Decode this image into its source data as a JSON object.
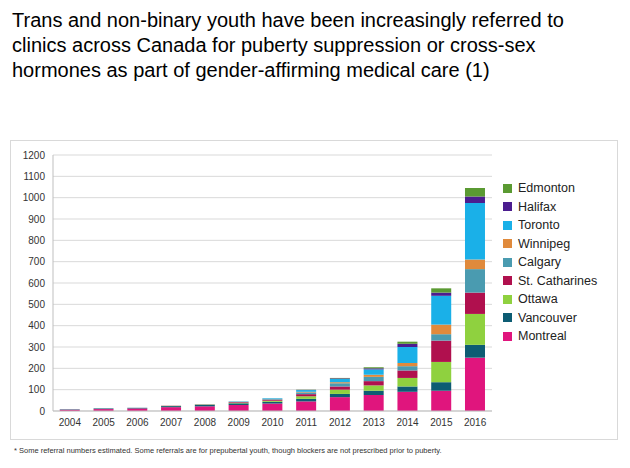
{
  "chart_data": {
    "type": "bar",
    "title": "Trans and non-binary youth have been increasingly referred to clinics across Canada for puberty suppression or cross-sex hormones as part of gender-affirming medical care (1)",
    "note": "* Some referral numbers estimated. Some referrals are for prepubertal youth, though blockers are not prescribed prior to puberty.",
    "categories": [
      "2004",
      "2005",
      "2006",
      "2007",
      "2008",
      "2009",
      "2010",
      "2011",
      "2012",
      "2013",
      "2014",
      "2015",
      "2016"
    ],
    "stacked": true,
    "grid": true,
    "legend": "right",
    "ylim": [
      0,
      1200
    ],
    "yticks": [
      0,
      100,
      200,
      300,
      400,
      500,
      600,
      700,
      800,
      900,
      1000,
      1100,
      1200
    ],
    "series": [
      {
        "name": "Montreal",
        "color": "#e0157d",
        "values": [
          6,
          9,
          12,
          18,
          22,
          28,
          35,
          45,
          65,
          75,
          90,
          95,
          250
        ]
      },
      {
        "name": "Vancouver",
        "color": "#0d5c73",
        "values": [
          2,
          3,
          3,
          5,
          6,
          8,
          8,
          12,
          15,
          20,
          25,
          40,
          60
        ]
      },
      {
        "name": "Ottawa",
        "color": "#8fd13f",
        "values": [
          0,
          0,
          0,
          1,
          2,
          3,
          5,
          12,
          20,
          25,
          40,
          95,
          145
        ]
      },
      {
        "name": "St. Catharines",
        "color": "#b0104e",
        "values": [
          0,
          0,
          0,
          1,
          1,
          3,
          5,
          10,
          15,
          20,
          35,
          100,
          100
        ]
      },
      {
        "name": "Calgary",
        "color": "#4a9bb0",
        "values": [
          0,
          0,
          0,
          0,
          1,
          2,
          3,
          8,
          15,
          20,
          20,
          30,
          110
        ]
      },
      {
        "name": "Winnipeg",
        "color": "#e08a3c",
        "values": [
          0,
          0,
          0,
          0,
          0,
          0,
          1,
          3,
          5,
          10,
          15,
          45,
          45
        ]
      },
      {
        "name": "Toronto",
        "color": "#1ab0e8",
        "values": [
          0,
          0,
          0,
          0,
          0,
          1,
          3,
          8,
          15,
          25,
          75,
          135,
          265
        ]
      },
      {
        "name": "Halifax",
        "color": "#4b1d8f",
        "values": [
          0,
          0,
          0,
          0,
          0,
          0,
          0,
          1,
          3,
          5,
          15,
          15,
          30
        ]
      },
      {
        "name": "Edmonton",
        "color": "#5a9a32",
        "values": [
          0,
          0,
          0,
          0,
          0,
          0,
          0,
          1,
          2,
          5,
          10,
          20,
          40
        ]
      }
    ]
  }
}
